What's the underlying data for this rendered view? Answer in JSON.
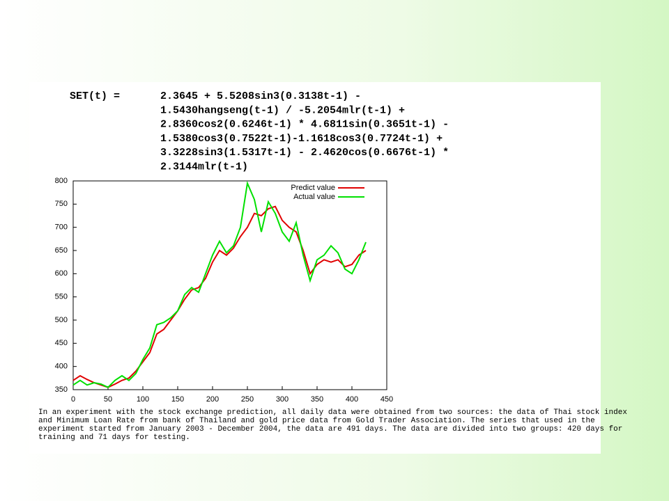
{
  "formula": [
    "SET(t) =",
    "2.3645 + 5.5208sin3(0.3138t-1) -",
    "1.5430hangseng(t-1) / -5.2054mlr(t-1) +",
    "2.8360cos2(0.6246t-1) * 4.6811sin(0.3651t-1) -",
    "1.5380cos3(0.7522t-1)-1.1618cos3(0.7724t-1) +",
    "3.3228sin3(1.5317t-1) - 2.4620cos(0.6676t-1) *",
    "2.3144mlr(t-1)"
  ],
  "caption": [
    "In an experiment with the stock exchange prediction, all daily data were obtained from two sources: the data of Thai stock index",
    "and Minimum Loan Rate from bank of Thailand and gold price data from Gold Trader Association. The series that used in the",
    "experiment started from January 2003 - December 2004, the data are 491 days. The data are divided into two groups: 420 days for",
    "training and 71 days for testing."
  ],
  "chart_data": {
    "type": "line",
    "x": [
      0,
      10,
      20,
      30,
      40,
      50,
      60,
      70,
      80,
      90,
      100,
      110,
      120,
      130,
      140,
      150,
      160,
      170,
      180,
      190,
      200,
      210,
      220,
      230,
      240,
      250,
      260,
      270,
      280,
      290,
      300,
      310,
      320,
      330,
      340,
      350,
      360,
      370,
      380,
      390,
      400,
      410,
      420
    ],
    "series": [
      {
        "name": "Predict value",
        "color": "#e00000",
        "values": [
          370,
          380,
          372,
          365,
          360,
          355,
          362,
          370,
          375,
          390,
          410,
          430,
          470,
          480,
          500,
          520,
          545,
          565,
          570,
          590,
          625,
          650,
          640,
          655,
          680,
          700,
          730,
          725,
          740,
          745,
          715,
          700,
          690,
          650,
          600,
          620,
          630,
          625,
          630,
          615,
          620,
          640,
          650
        ]
      },
      {
        "name": "Actual value",
        "color": "#00e000",
        "values": [
          360,
          370,
          360,
          365,
          362,
          355,
          370,
          380,
          370,
          385,
          415,
          440,
          490,
          495,
          505,
          520,
          555,
          570,
          560,
          600,
          640,
          670,
          645,
          660,
          700,
          795,
          760,
          690,
          755,
          730,
          690,
          670,
          710,
          640,
          585,
          630,
          640,
          660,
          645,
          610,
          600,
          630,
          668
        ]
      }
    ],
    "xlim": [
      0,
      450
    ],
    "xticks": [
      0,
      50,
      100,
      150,
      200,
      250,
      300,
      350,
      400,
      450
    ],
    "ylim": [
      350,
      800
    ],
    "yticks": [
      350,
      400,
      450,
      500,
      550,
      600,
      650,
      700,
      750,
      800
    ],
    "legend": "upper right"
  }
}
